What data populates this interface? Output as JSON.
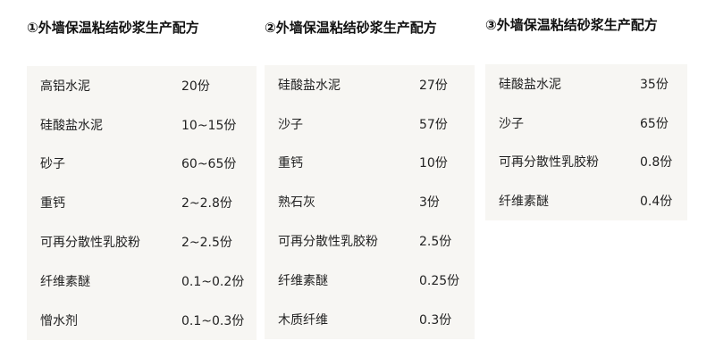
{
  "formulas": [
    {
      "title": "①外墙保温粘结砂浆生产配方",
      "rows": [
        {
          "name": "高铝水泥",
          "amount": "20份"
        },
        {
          "name": "硅酸盐水泥",
          "amount": "10~15份"
        },
        {
          "name": "砂子",
          "amount": "60~65份"
        },
        {
          "name": "重钙",
          "amount": "2~2.8份"
        },
        {
          "name": "可再分散性乳胶粉",
          "amount": "2~2.5份"
        },
        {
          "name": "纤维素醚",
          "amount": "0.1~0.2份"
        },
        {
          "name": "憎水剂",
          "amount": "0.1~0.3份"
        }
      ]
    },
    {
      "title": "②外墙保温粘结砂浆生产配方",
      "rows": [
        {
          "name": "硅酸盐水泥",
          "amount": "27份"
        },
        {
          "name": "沙子",
          "amount": "57份"
        },
        {
          "name": "重钙",
          "amount": "10份"
        },
        {
          "name": "熟石灰",
          "amount": "3份"
        },
        {
          "name": "可再分散性乳胶粉",
          "amount": "2.5份"
        },
        {
          "name": "纤维素醚",
          "amount": "0.25份"
        },
        {
          "name": "木质纤维",
          "amount": "0.3份"
        }
      ]
    },
    {
      "title": "③外墙保温粘结砂浆生产配方",
      "rows": [
        {
          "name": "硅酸盐水泥",
          "amount": "35份"
        },
        {
          "name": "沙子",
          "amount": "65份"
        },
        {
          "name": "可再分散性乳胶粉",
          "amount": "0.8份"
        },
        {
          "name": "纤维素醚",
          "amount": "0.4份"
        }
      ]
    }
  ]
}
